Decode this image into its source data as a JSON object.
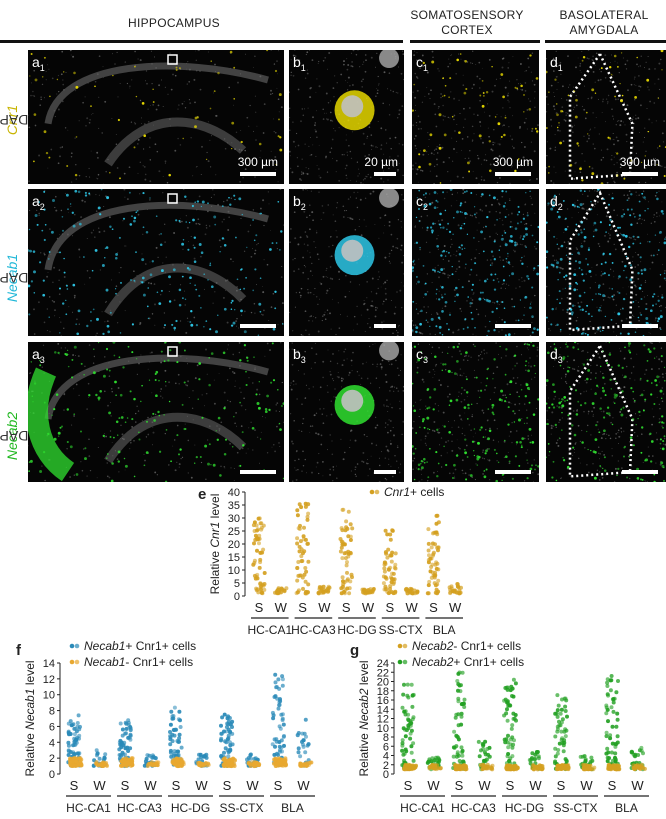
{
  "headers": {
    "hippocampus": "HIPPOCAMPUS",
    "ss_line1": "SOMATOSENSORY",
    "ss_line2": "CORTEX",
    "bla_line1": "BASOLATERAL",
    "bla_line2": "AMYGDALA"
  },
  "row_labels": [
    {
      "dapi": "DAPI",
      "gene": "Cnr1",
      "color": "#d4c400"
    },
    {
      "dapi": "DAPI",
      "gene": "Necab1",
      "color": "#22b8d8"
    },
    {
      "dapi": "DAPI",
      "gene": "Necab2",
      "color": "#22b822"
    }
  ],
  "panel_labels": {
    "a": [
      "a",
      "1",
      "a",
      "2",
      "a",
      "3"
    ],
    "b": [
      "b",
      "1",
      "b",
      "2",
      "b",
      "3"
    ],
    "c": [
      "c",
      "1",
      "c",
      "2",
      "c",
      "3"
    ],
    "d": [
      "d",
      "1",
      "d",
      "2",
      "d",
      "3"
    ]
  },
  "scalebars": {
    "a": "300 µm",
    "b": "20 µm",
    "c": "300 µm",
    "d": "300 µm"
  },
  "chart_data": [
    {
      "panel": "e",
      "type": "scatter",
      "ylabel_pre": "Relative ",
      "ylabel_gene": "Cnr1",
      "ylabel_post": " level",
      "ylim": [
        0,
        40
      ],
      "yticks": [
        0,
        5,
        10,
        15,
        20,
        25,
        30,
        35,
        40
      ],
      "groups": [
        "HC-CA1",
        "HC-CA3",
        "HC-DG",
        "SS-CTX",
        "BLA"
      ],
      "conditions": [
        "S",
        "W"
      ],
      "legend": [
        {
          "gene": "Cnr1",
          "suffix": "+ cells",
          "color": "#d4a020"
        }
      ],
      "series": [
        {
          "name": "Cnr1+ cells",
          "color": "#d4a020",
          "max_S": [
            30,
            36,
            35,
            27,
            32
          ],
          "max_W": [
            3,
            4,
            3,
            3,
            5
          ]
        }
      ]
    },
    {
      "panel": "f",
      "type": "scatter",
      "ylabel_pre": "Relative ",
      "ylabel_gene": "Necab1",
      "ylabel_post": " level",
      "ylim": [
        0,
        14
      ],
      "yticks": [
        0,
        2,
        4,
        6,
        8,
        10,
        12,
        14
      ],
      "groups": [
        "HC-CA1",
        "HC-CA3",
        "HC-DG",
        "SS-CTX",
        "BLA"
      ],
      "conditions": [
        "S",
        "W"
      ],
      "legend": [
        {
          "gene": "Necab1",
          "suffix": "+ Cnr1+ cells",
          "color": "#2a8ab8"
        },
        {
          "gene": "Necab1",
          "suffix": "- Cnr1+ cells",
          "color": "#e8a830"
        }
      ],
      "series": [
        {
          "name": "Necab1+ Cnr1+ cells",
          "color": "#2a8ab8",
          "max_S": [
            8,
            7,
            8.5,
            7.5,
            13
          ],
          "max_W": [
            3,
            2.5,
            3,
            2.5,
            7
          ]
        },
        {
          "name": "Necab1- Cnr1+ cells",
          "color": "#e8a830",
          "max_S": [
            2,
            2,
            2,
            2,
            2
          ],
          "max_W": [
            1.5,
            1.5,
            1.5,
            1.5,
            1.5
          ]
        }
      ]
    },
    {
      "panel": "g",
      "type": "scatter",
      "ylabel_pre": "Relative ",
      "ylabel_gene": "Necab2",
      "ylabel_post": " level",
      "ylim": [
        0,
        24
      ],
      "yticks": [
        0,
        2,
        4,
        6,
        8,
        10,
        12,
        14,
        16,
        18,
        20,
        22,
        24
      ],
      "groups": [
        "HC-CA1",
        "HC-CA3",
        "HC-DG",
        "SS-CTX",
        "BLA"
      ],
      "conditions": [
        "S",
        "W"
      ],
      "legend": [
        {
          "gene": "Necab2",
          "suffix": "- Cnr1+ cells",
          "color": "#d4a020"
        },
        {
          "gene": "Necab2",
          "suffix": "+ Cnr1+ cells",
          "color": "#22a022"
        }
      ],
      "series": [
        {
          "name": "Necab2+ Cnr1+ cells",
          "color": "#22a022",
          "max_S": [
            20,
            22,
            21,
            18,
            22
          ],
          "max_W": [
            4,
            7,
            5,
            4,
            6
          ]
        },
        {
          "name": "Necab2- Cnr1+ cells",
          "color": "#d4a020",
          "max_S": [
            2,
            2,
            2,
            2,
            2
          ],
          "max_W": [
            2,
            2,
            2,
            2,
            2
          ]
        }
      ]
    }
  ]
}
